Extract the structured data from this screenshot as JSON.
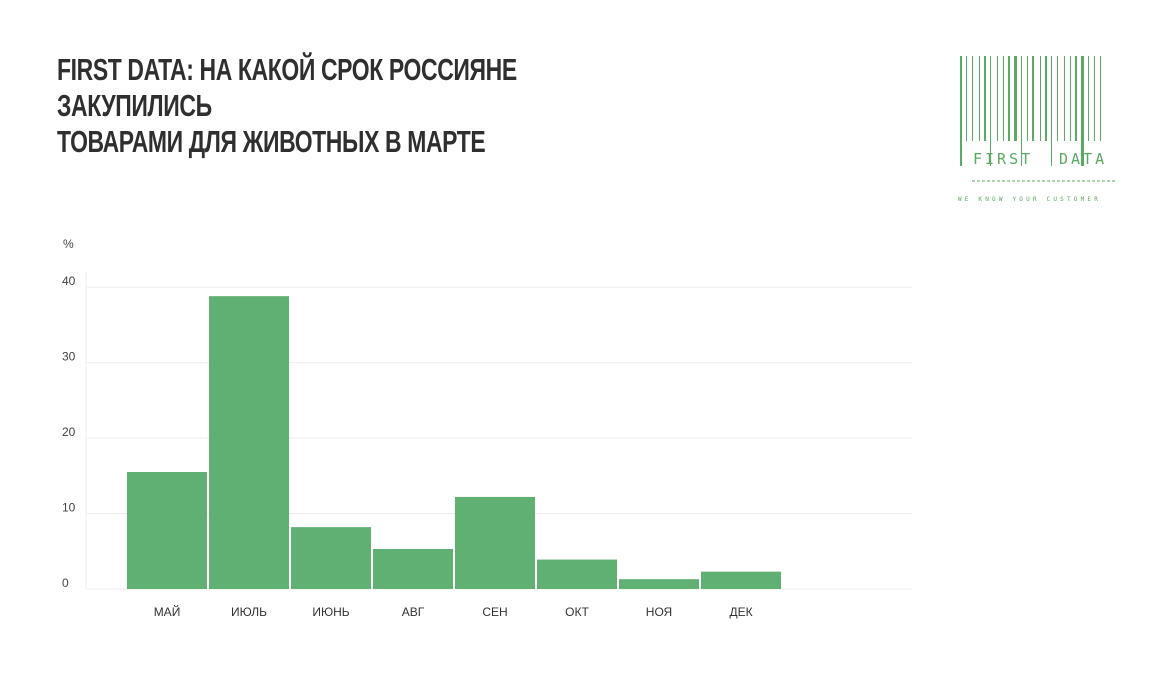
{
  "title_lines": [
    "FIRST DATA: НА КАКОЙ СРОК РОССИЯНЕ ЗАКУПИЛИСЬ",
    "ТОВАРАМИ ДЛЯ ЖИВОТНЫХ В МАРТЕ"
  ],
  "logo": {
    "word1": "FIRST",
    "word2": "DATA",
    "tagline": "WE KNOW YOUR CUSTOMER",
    "color": "#5aa964"
  },
  "chart_data": {
    "type": "bar",
    "ylabel": "%",
    "categories": [
      "МАЙ",
      "ИЮЛЬ",
      "ИЮНЬ",
      "АВГ",
      "СЕН",
      "ОКТ",
      "НОЯ",
      "ДЕК"
    ],
    "values": [
      15.5,
      38.8,
      8.2,
      5.3,
      12.2,
      3.9,
      1.3,
      2.3
    ],
    "yticks": [
      0,
      10,
      20,
      30,
      40
    ],
    "ylim": [
      0,
      42
    ],
    "grid": true,
    "bar_color": "#60b074"
  }
}
